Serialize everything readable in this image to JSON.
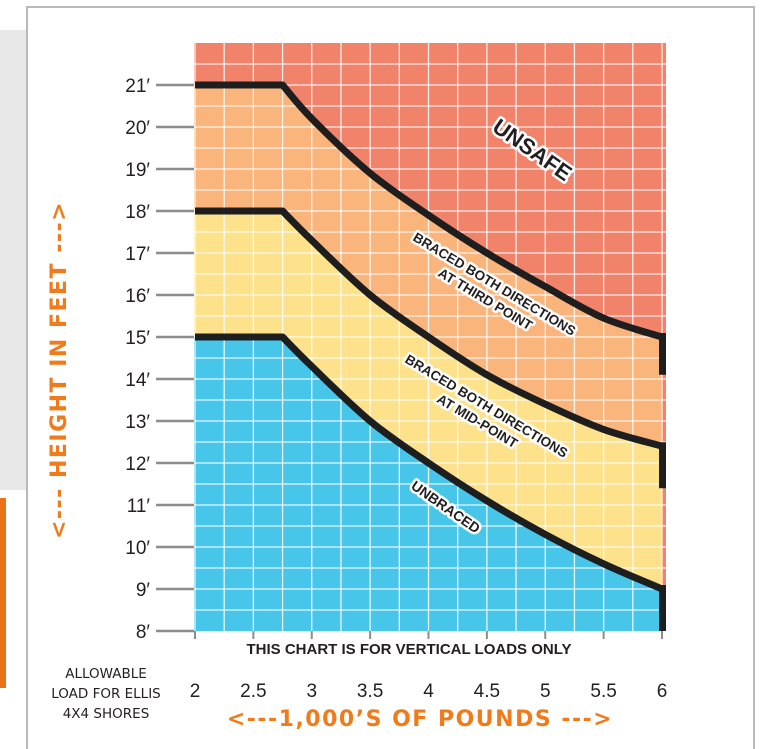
{
  "chart_data": {
    "type": "area",
    "title": "",
    "note": "THIS CHART IS FOR VERTICAL LOADS ONLY",
    "xlabel": "<---1,000’S OF POUNDS --->",
    "ylabel": "<--- HEIGHT IN FEET --->",
    "x_caption": [
      "ALLOWABLE",
      "LOAD FOR ELLIS",
      "4X4 SHORES"
    ],
    "xlim": [
      2,
      6
    ],
    "ylim": [
      8,
      21.5
    ],
    "x_ticks": [
      2,
      2.5,
      3,
      3.5,
      4,
      4.5,
      5,
      5.5,
      6
    ],
    "x_tick_labels": [
      "2",
      "2.5",
      "3",
      "3.5",
      "4",
      "4.5",
      "5",
      "5.5",
      "6"
    ],
    "y_ticks": [
      8,
      9,
      10,
      11,
      12,
      13,
      14,
      15,
      16,
      17,
      18,
      19,
      20,
      21
    ],
    "y_tick_labels": [
      "8′",
      "9′",
      "10′",
      "11′",
      "12′",
      "13′",
      "14′",
      "15′",
      "16′",
      "17′",
      "18′",
      "19′",
      "20′",
      "21′"
    ],
    "grid": true,
    "regions": [
      {
        "name": "UNSAFE",
        "color": "#f1836b"
      },
      {
        "name": "BRACED BOTH DIRECTIONS AT THIRD POINT",
        "color": "#f9b57b"
      },
      {
        "name": "BRACED BOTH DIRECTIONS AT MID-POINT",
        "color": "#fde28b"
      },
      {
        "name": "UNBRACED",
        "color": "#47c6e9"
      }
    ],
    "series": [
      {
        "name": "BRACED BOTH DIRECTIONS AT THIRD POINT",
        "x": [
          2,
          2.75,
          3,
          3.5,
          4,
          4.5,
          5,
          5.5,
          6
        ],
        "y": [
          21,
          21,
          20.2,
          18.9,
          17.9,
          17.0,
          16.2,
          15.45,
          15.0
        ],
        "end_drop": [
          15.0,
          14.1
        ]
      },
      {
        "name": "BRACED BOTH DIRECTIONS AT MID-POINT",
        "x": [
          2,
          2.75,
          3,
          3.5,
          4,
          4.5,
          5,
          5.5,
          6
        ],
        "y": [
          18,
          18,
          17.3,
          16.0,
          15.0,
          14.1,
          13.4,
          12.8,
          12.4
        ],
        "end_drop": [
          12.4,
          11.4
        ]
      },
      {
        "name": "UNBRACED",
        "x": [
          2,
          2.75,
          3,
          3.5,
          4,
          4.5,
          5,
          5.5,
          6
        ],
        "y": [
          15,
          15,
          14.3,
          13.0,
          12.0,
          11.1,
          10.3,
          9.6,
          9.0
        ],
        "end_drop": [
          9.0,
          8.0
        ]
      }
    ],
    "colors": {
      "grid": "#ffffff",
      "curve": "#1e1e1e",
      "axis_text": "#231f20",
      "title_orange": "#ef7b1a"
    }
  }
}
